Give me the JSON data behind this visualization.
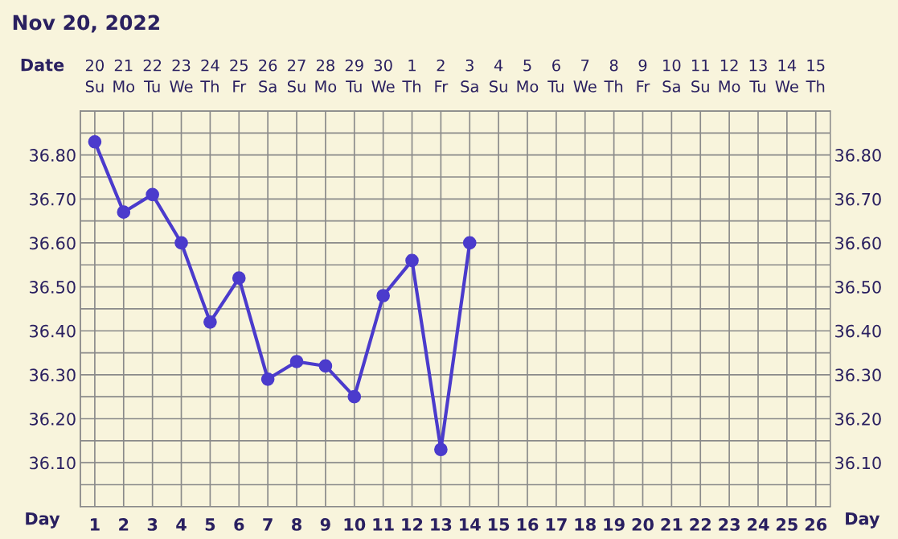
{
  "chart_data": {
    "type": "line",
    "title": "Nov 20, 2022",
    "xlabel": "Day",
    "x2label": "Date",
    "categories": [
      "1",
      "2",
      "3",
      "4",
      "5",
      "6",
      "7",
      "8",
      "9",
      "10",
      "11",
      "12",
      "13",
      "14",
      "15",
      "16",
      "17",
      "18",
      "19",
      "20",
      "21",
      "22",
      "23",
      "24",
      "25",
      "26"
    ],
    "series": [
      {
        "color": "#4b3bcc",
        "values": [
          36.83,
          36.67,
          36.71,
          36.6,
          36.42,
          36.52,
          36.29,
          36.33,
          36.32,
          36.25,
          36.48,
          36.56,
          36.13,
          36.6,
          null,
          null,
          null,
          null,
          null,
          null,
          null,
          null,
          null,
          null,
          null,
          null
        ]
      }
    ],
    "ylim": [
      36.0,
      36.9
    ],
    "yticks": [
      {
        "value": 36.0,
        "label": null
      },
      {
        "value": 36.05,
        "label": null
      },
      {
        "value": 36.1,
        "label": "36.10"
      },
      {
        "value": 36.15,
        "label": null
      },
      {
        "value": 36.2,
        "label": "36.20"
      },
      {
        "value": 36.25,
        "label": null
      },
      {
        "value": 36.3,
        "label": "36.30"
      },
      {
        "value": 36.35,
        "label": null
      },
      {
        "value": 36.4,
        "label": "36.40"
      },
      {
        "value": 36.45,
        "label": null
      },
      {
        "value": 36.5,
        "label": "36.50"
      },
      {
        "value": 36.55,
        "label": null
      },
      {
        "value": 36.6,
        "label": "36.60"
      },
      {
        "value": 36.65,
        "label": null
      },
      {
        "value": 36.7,
        "label": "36.70"
      },
      {
        "value": 36.75,
        "label": null
      },
      {
        "value": 36.8,
        "label": "36.80"
      },
      {
        "value": 36.85,
        "label": null
      },
      {
        "value": 36.9,
        "label": null
      }
    ],
    "y2lim": [
      36.0,
      36.9
    ],
    "y2ticks": [
      {
        "value": 36.0,
        "label": null
      },
      {
        "value": 36.05,
        "label": null
      },
      {
        "value": 36.1,
        "label": "36.10"
      },
      {
        "value": 36.15,
        "label": null
      },
      {
        "value": 36.2,
        "label": "36.20"
      },
      {
        "value": 36.25,
        "label": null
      },
      {
        "value": 36.3,
        "label": "36.30"
      },
      {
        "value": 36.35,
        "label": null
      },
      {
        "value": 36.4,
        "label": "36.40"
      },
      {
        "value": 36.45,
        "label": null
      },
      {
        "value": 36.5,
        "label": "36.50"
      },
      {
        "value": 36.55,
        "label": null
      },
      {
        "value": 36.6,
        "label": "36.60"
      },
      {
        "value": 36.65,
        "label": null
      },
      {
        "value": 36.7,
        "label": "36.70"
      },
      {
        "value": 36.75,
        "label": null
      },
      {
        "value": 36.8,
        "label": "36.80"
      },
      {
        "value": 36.85,
        "label": null
      },
      {
        "value": 36.9,
        "label": null
      }
    ],
    "x2lim": [
      "2022-11-19T12:00",
      "2022-12-15T12:00"
    ],
    "x2ticks": [
      {
        "value": "2022-11-20",
        "label": "20\nSu"
      },
      {
        "value": "2022-11-21",
        "label": "21\nMo"
      },
      {
        "value": "2022-11-22",
        "label": "22\nTu"
      },
      {
        "value": "2022-11-23",
        "label": "23\nWe"
      },
      {
        "value": "2022-11-24",
        "label": "24\nTh"
      },
      {
        "value": "2022-11-25",
        "label": "25\nFr"
      },
      {
        "value": "2022-11-26",
        "label": "26\nSa"
      },
      {
        "value": "2022-11-27",
        "label": "27\nSu"
      },
      {
        "value": "2022-11-28",
        "label": "28\nMo"
      },
      {
        "value": "2022-11-29",
        "label": "29\nTu"
      },
      {
        "value": "2022-11-30",
        "label": "30\nWe"
      },
      {
        "value": "2022-12-01",
        "label": "1\nTh"
      },
      {
        "value": "2022-12-02",
        "label": "2\nFr"
      },
      {
        "value": "2022-12-03",
        "label": "3\nSa"
      },
      {
        "value": "2022-12-04",
        "label": "4\nSu"
      },
      {
        "value": "2022-12-05",
        "label": "5\nMo"
      },
      {
        "value": "2022-12-06",
        "label": "6\nTu"
      },
      {
        "value": "2022-12-07",
        "label": "7\nWe"
      },
      {
        "value": "2022-12-08",
        "label": "8\nTh"
      },
      {
        "value": "2022-12-09",
        "label": "9\nFr"
      },
      {
        "value": "2022-12-10",
        "label": "10\nSa"
      },
      {
        "value": "2022-12-11",
        "label": "11\nSu"
      },
      {
        "value": "2022-12-12",
        "label": "12\nMo"
      },
      {
        "value": "2022-12-13",
        "label": "13\nTu"
      },
      {
        "value": "2022-12-14",
        "label": "14\nWe"
      },
      {
        "value": "2022-12-15",
        "label": "15\nTh"
      }
    ],
    "grid": true,
    "marker": "circle",
    "line_style": "solid",
    "legend": false
  }
}
